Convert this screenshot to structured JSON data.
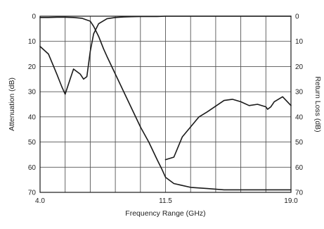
{
  "chart_data": {
    "type": "line",
    "title": "",
    "xlabel": "Frequency Range (GHz)",
    "ylabel_left": "Attenuation (dB)",
    "ylabel_right": "Return Loss (dB)",
    "x_range": [
      4.0,
      19.0
    ],
    "x_tick_labels": [
      {
        "value": 4.0,
        "label": "4.0"
      },
      {
        "value": 11.5,
        "label": "11.5"
      },
      {
        "value": 19.0,
        "label": "19.0"
      }
    ],
    "x_gridlines": 10,
    "y_range": [
      0,
      70
    ],
    "y_inverted": true,
    "y_ticks": [
      0,
      10,
      20,
      30,
      40,
      50,
      60,
      70
    ],
    "y_tick_labels": [
      "0",
      "10",
      "20",
      "30",
      "40",
      "50",
      "60",
      "70"
    ],
    "grid": true,
    "line_color": "#1a1a1a",
    "series": [
      {
        "x": [
          4.0,
          4.5,
          5.0,
          5.5,
          6.0,
          6.5,
          7.0,
          7.2,
          7.5,
          7.8,
          8.0,
          8.5,
          9.0,
          9.5,
          10.0,
          10.5,
          11.0,
          11.3,
          11.5,
          12.0,
          13.0,
          14.0,
          15.0,
          16.0,
          17.0,
          18.0,
          19.0
        ],
        "values": [
          0.5,
          0.5,
          0.4,
          0.4,
          0.5,
          0.8,
          2.0,
          4.0,
          8.0,
          13.0,
          16.0,
          23.0,
          30.0,
          37.0,
          44.0,
          50.0,
          57.0,
          61.0,
          64.0,
          66.5,
          68.0,
          68.5,
          69.0,
          69.0,
          69.0,
          69.0,
          69.0
        ]
      },
      {
        "x": [
          4.0,
          4.5,
          5.0,
          5.3,
          5.5,
          5.8,
          6.0,
          6.4,
          6.6,
          6.8,
          7.0,
          7.2,
          7.5,
          8.0,
          8.5,
          9.0,
          9.5,
          10.0,
          10.5,
          11.0,
          11.5,
          12.0,
          13.0,
          14.0,
          15.0,
          16.0,
          17.0,
          18.0,
          19.0
        ],
        "values": [
          12.0,
          15.0,
          23.0,
          28.0,
          31.0,
          25.0,
          21.0,
          23.0,
          25.0,
          24.0,
          14.0,
          7.0,
          3.0,
          1.0,
          0.5,
          0.3,
          0.2,
          0.1,
          0.1,
          0.1,
          0.0,
          0.0,
          0.0,
          0.0,
          0.0,
          0.0,
          0.0,
          0.0,
          0.0
        ]
      },
      {
        "x": [
          11.5,
          12.0,
          12.5,
          13.0,
          13.5,
          14.0,
          15.0,
          15.5,
          16.0,
          16.5,
          17.0,
          17.5,
          17.6,
          17.8,
          18.0,
          18.5,
          19.0
        ],
        "values": [
          57.0,
          56.0,
          48.0,
          44.0,
          40.0,
          38.0,
          33.5,
          33.0,
          34.0,
          35.5,
          35.0,
          36.0,
          37.0,
          36.0,
          34.0,
          32.0,
          35.5
        ]
      }
    ]
  }
}
